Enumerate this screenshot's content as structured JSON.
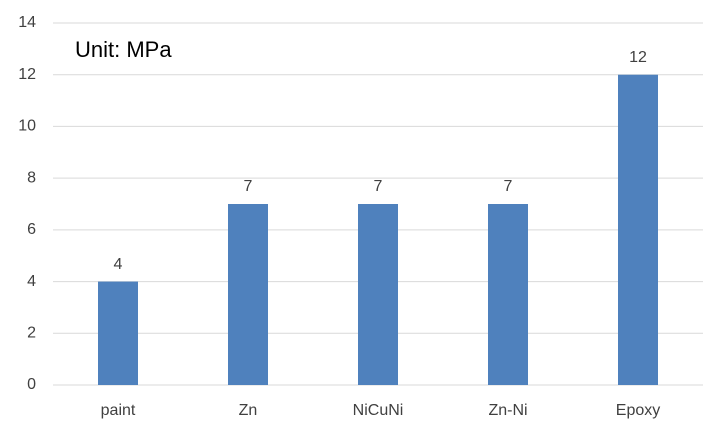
{
  "chart_data": {
    "type": "bar",
    "annotation": "Unit: MPa",
    "categories": [
      "paint",
      "Zn",
      "NiCuNi",
      "Zn-Ni",
      "Epoxy"
    ],
    "values": [
      4,
      7,
      7,
      7,
      12
    ],
    "color": "#4f81bd",
    "ylim": [
      0,
      14
    ],
    "yticks": [
      0,
      2,
      4,
      6,
      8,
      10,
      12,
      14
    ],
    "grid": true,
    "data_labels": true
  }
}
